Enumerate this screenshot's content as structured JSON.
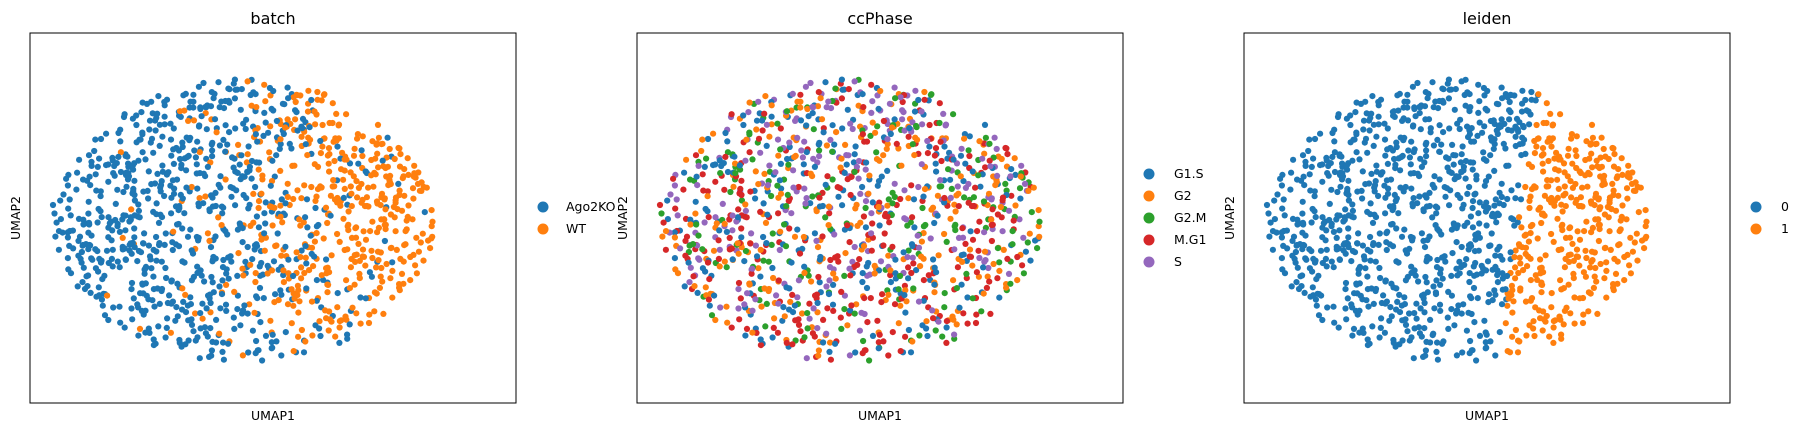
{
  "figure": {
    "colors": {
      "blue": "#1f77b4",
      "orange": "#ff7f0e",
      "green": "#2ca02c",
      "red": "#d62728",
      "purple": "#9467bd"
    }
  },
  "chart_data": [
    {
      "type": "scatter",
      "title": "batch",
      "xlabel": "UMAP1",
      "ylabel": "UMAP2",
      "grid": false,
      "ticks": false,
      "legend_placement": "right",
      "categories": [
        "Ago2KO",
        "WT"
      ],
      "category_colors": [
        "#1f77b4",
        "#ff7f0e"
      ],
      "n_points_approx": 1200,
      "coloring": "left part of the cloud mostly Ago2KO, right part mostly WT, mixed near the middle"
    },
    {
      "type": "scatter",
      "title": "ccPhase",
      "xlabel": "UMAP1",
      "ylabel": "UMAP2",
      "grid": false,
      "ticks": false,
      "legend_placement": "right",
      "categories": [
        "G1.S",
        "G2",
        "G2.M",
        "M.G1",
        "S"
      ],
      "category_colors": [
        "#1f77b4",
        "#ff7f0e",
        "#2ca02c",
        "#d62728",
        "#9467bd"
      ],
      "n_points_approx": 1200,
      "coloring": "phases intermixed throughout the cloud; S more frequent at top, M.G1 more frequent at bottom"
    },
    {
      "type": "scatter",
      "title": "leiden",
      "xlabel": "UMAP1",
      "ylabel": "UMAP2",
      "grid": false,
      "ticks": false,
      "legend_placement": "right",
      "categories": [
        "0",
        "1"
      ],
      "category_colors": [
        "#1f77b4",
        "#ff7f0e"
      ],
      "n_points_approx": 1200,
      "coloring": "cluster 0 on the left side, cluster 1 on the right side, split by a nearly vertical boundary"
    }
  ]
}
